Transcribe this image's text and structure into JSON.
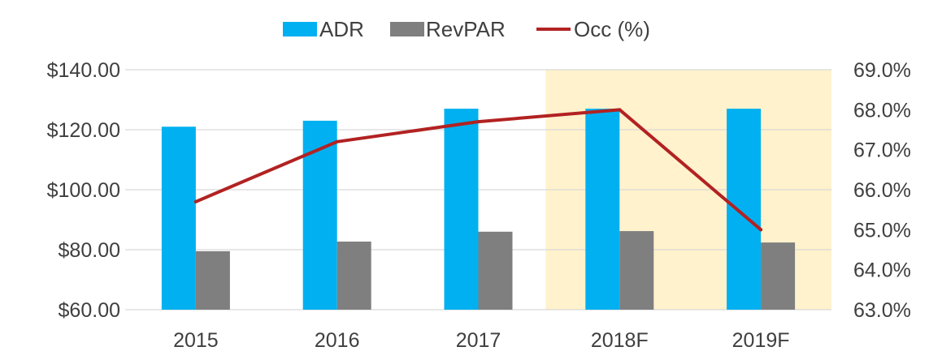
{
  "chart_data": {
    "type": "bar",
    "categories": [
      "2015",
      "2016",
      "2017",
      "2018F",
      "2019F"
    ],
    "series": [
      {
        "name": "ADR",
        "kind": "bar",
        "axis": "left",
        "color": "#00b0f0",
        "values": [
          121,
          123,
          127,
          127,
          127
        ]
      },
      {
        "name": "RevPAR",
        "kind": "bar",
        "axis": "left",
        "color": "#7f7f7f",
        "values": [
          79.5,
          82.7,
          86,
          86.2,
          82.4
        ]
      },
      {
        "name": "Occ (%)",
        "kind": "line",
        "axis": "right",
        "color": "#b22222",
        "values": [
          65.7,
          67.2,
          67.7,
          68.0,
          65.0
        ]
      }
    ],
    "left_axis": {
      "ticks": [
        "$60.00",
        "$80.00",
        "$100.00",
        "$120.00",
        "$140.00"
      ],
      "values": [
        60,
        80,
        100,
        120,
        140
      ],
      "ylim": [
        60,
        140
      ]
    },
    "right_axis": {
      "ticks": [
        "63.0%",
        "64.0%",
        "65.0%",
        "66.0%",
        "67.0%",
        "68.0%",
        "69.0%"
      ],
      "values": [
        63,
        64,
        65,
        66,
        67,
        68,
        69
      ],
      "ylim": [
        63,
        69
      ]
    },
    "highlight": {
      "categories": [
        "2018F",
        "2019F"
      ],
      "color": "#fff2cc"
    },
    "grid": true,
    "gridline_color": "#d9d9d9",
    "legend_position": "top-center"
  }
}
